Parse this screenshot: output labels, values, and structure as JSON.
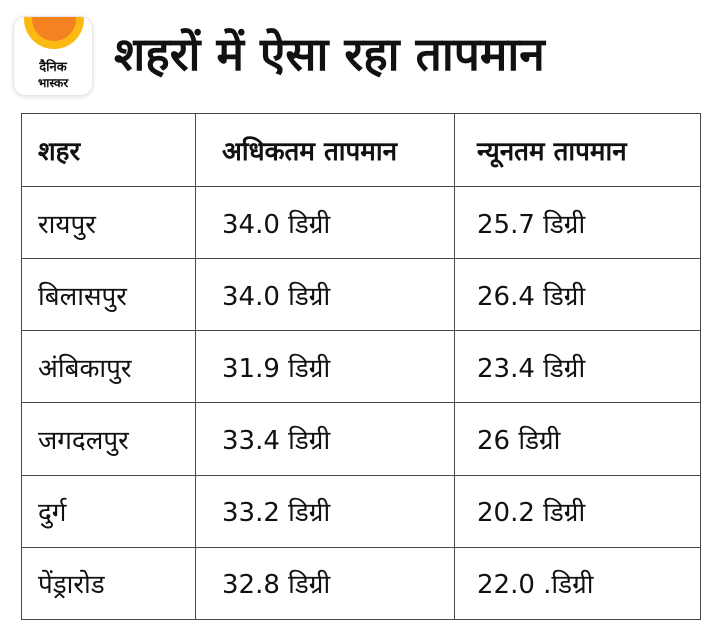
{
  "logo": {
    "line1": "दैनिक",
    "line2": "भास्कर",
    "accent_color": "#f58220",
    "sun_color": "#fdb913"
  },
  "title": "शहरों में ऐसा रहा तापमान",
  "table": {
    "headers": {
      "city": "शहर",
      "max": "अधिकतम तापमान",
      "min": "न्यूनतम तापमान"
    },
    "rows": [
      {
        "city": "रायपुर",
        "max": "34.0 डिग्री",
        "min": "25.7 डिग्री"
      },
      {
        "city": "बिलासपुर",
        "max": "34.0 डिग्री",
        "min": "26.4 डिग्री"
      },
      {
        "city": "अंबिकापुर",
        "max": "31.9 डिग्री",
        "min": "23.4 डिग्री"
      },
      {
        "city": "जगदलपुर",
        "max": "33.4 डिग्री",
        "min": "26 डिग्री"
      },
      {
        "city": "दुर्ग",
        "max": "33.2 डिग्री",
        "min": "20.2 डिग्री"
      },
      {
        "city": "पेंड्रारोड",
        "max": "32.8 डिग्री",
        "min": "22.0 .डिग्री"
      }
    ]
  }
}
